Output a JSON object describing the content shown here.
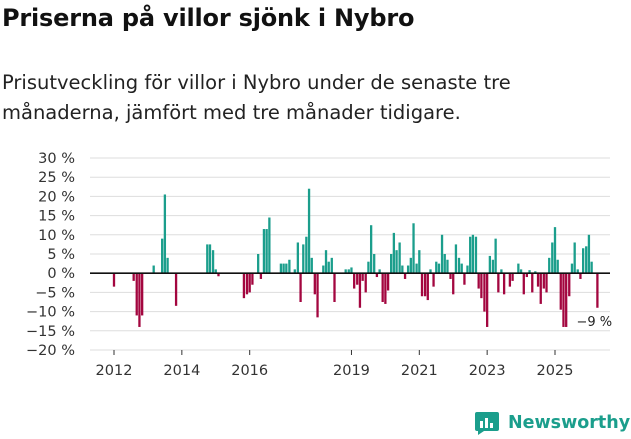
{
  "header": {
    "title": "Priserna på villor sjönk i Nybro",
    "subtitle": "Prisutveckling för villor i Nybro under de senaste tre månaderna, jämfört med tre månader tidigare."
  },
  "brand": {
    "name": "Newsworthy"
  },
  "chart_data": {
    "type": "bar",
    "title": "Priserna på villor sjönk i Nybro",
    "subtitle": "Prisutveckling för villor i Nybro under de senaste tre månaderna, jämfört med tre månader tidigare.",
    "xlabel": "",
    "ylabel": "",
    "ylim": [
      -20,
      30
    ],
    "y_ticks": [
      -20,
      -15,
      -10,
      -5,
      0,
      5,
      10,
      15,
      20,
      25,
      30
    ],
    "y_tick_labels": [
      "−20 %",
      "−15 %",
      "−10 %",
      "−5 %",
      "0 %",
      "5 %",
      "10 %",
      "15 %",
      "20 %",
      "25 %",
      "30 %"
    ],
    "x_ticks": [
      2012,
      2014,
      2016,
      2019,
      2021,
      2023,
      2025
    ],
    "x_tick_labels": [
      "2012",
      "2014",
      "2016",
      "2019",
      "2021",
      "2023",
      "2025"
    ],
    "grid": true,
    "colors": {
      "positive": "#1b9e8c",
      "negative": "#a3063f",
      "grid": "#dddddd",
      "zero_line": "#111111"
    },
    "annotation": {
      "text": "−9 %",
      "date": 2025.75,
      "value": -9
    },
    "points": [
      [
        2012.0,
        -3.5
      ],
      [
        2012.58,
        -2.0
      ],
      [
        2012.67,
        -11.0
      ],
      [
        2012.75,
        -14.0
      ],
      [
        2012.83,
        -11.0
      ],
      [
        2013.17,
        2.0
      ],
      [
        2013.42,
        9.0
      ],
      [
        2013.5,
        20.5
      ],
      [
        2013.58,
        4.0
      ],
      [
        2013.83,
        -8.5
      ],
      [
        2014.75,
        7.5
      ],
      [
        2014.83,
        7.5
      ],
      [
        2014.92,
        6.0
      ],
      [
        2015.0,
        1.0
      ],
      [
        2015.08,
        -0.8
      ],
      [
        2015.83,
        -6.5
      ],
      [
        2015.92,
        -5.5
      ],
      [
        2016.0,
        -5.0
      ],
      [
        2016.08,
        -3.0
      ],
      [
        2016.25,
        5.0
      ],
      [
        2016.33,
        -1.5
      ],
      [
        2016.42,
        11.5
      ],
      [
        2016.5,
        11.5
      ],
      [
        2016.58,
        14.5
      ],
      [
        2016.92,
        2.5
      ],
      [
        2017.0,
        2.5
      ],
      [
        2017.08,
        2.5
      ],
      [
        2017.17,
        3.5
      ],
      [
        2017.33,
        1.0
      ],
      [
        2017.42,
        8.0
      ],
      [
        2017.5,
        -7.5
      ],
      [
        2017.58,
        7.5
      ],
      [
        2017.67,
        9.5
      ],
      [
        2017.75,
        22.0
      ],
      [
        2017.83,
        4.0
      ],
      [
        2017.92,
        -5.5
      ],
      [
        2018.0,
        -11.5
      ],
      [
        2018.17,
        2.0
      ],
      [
        2018.25,
        6.0
      ],
      [
        2018.33,
        3.0
      ],
      [
        2018.42,
        4.0
      ],
      [
        2018.5,
        -7.5
      ],
      [
        2018.83,
        1.0
      ],
      [
        2018.92,
        1.0
      ],
      [
        2019.0,
        1.5
      ],
      [
        2019.08,
        -4.0
      ],
      [
        2019.17,
        -3.0
      ],
      [
        2019.25,
        -9.0
      ],
      [
        2019.33,
        -2.0
      ],
      [
        2019.42,
        -5.0
      ],
      [
        2019.5,
        3.0
      ],
      [
        2019.58,
        12.5
      ],
      [
        2019.67,
        5.0
      ],
      [
        2019.75,
        -1.0
      ],
      [
        2019.83,
        1.0
      ],
      [
        2019.92,
        -7.5
      ],
      [
        2020.0,
        -8.0
      ],
      [
        2020.08,
        -4.5
      ],
      [
        2020.17,
        5.0
      ],
      [
        2020.25,
        10.5
      ],
      [
        2020.33,
        6.0
      ],
      [
        2020.42,
        8.0
      ],
      [
        2020.5,
        2.0
      ],
      [
        2020.58,
        -1.5
      ],
      [
        2020.67,
        2.0
      ],
      [
        2020.75,
        4.0
      ],
      [
        2020.83,
        13.0
      ],
      [
        2020.92,
        2.5
      ],
      [
        2021.0,
        6.0
      ],
      [
        2021.08,
        -6.0
      ],
      [
        2021.17,
        -6.0
      ],
      [
        2021.25,
        -7.0
      ],
      [
        2021.33,
        1.0
      ],
      [
        2021.42,
        -3.5
      ],
      [
        2021.5,
        3.0
      ],
      [
        2021.58,
        2.5
      ],
      [
        2021.67,
        10.0
      ],
      [
        2021.75,
        5.0
      ],
      [
        2021.83,
        3.5
      ],
      [
        2021.92,
        -1.5
      ],
      [
        2022.0,
        -5.5
      ],
      [
        2022.08,
        7.5
      ],
      [
        2022.17,
        4.0
      ],
      [
        2022.25,
        2.5
      ],
      [
        2022.33,
        -3.0
      ],
      [
        2022.42,
        2.0
      ],
      [
        2022.5,
        9.5
      ],
      [
        2022.58,
        10.0
      ],
      [
        2022.67,
        9.5
      ],
      [
        2022.75,
        -4.0
      ],
      [
        2022.83,
        -6.5
      ],
      [
        2022.92,
        -10.0
      ],
      [
        2023.0,
        -14.0
      ],
      [
        2023.08,
        4.5
      ],
      [
        2023.17,
        3.5
      ],
      [
        2023.25,
        9.0
      ],
      [
        2023.33,
        -5.0
      ],
      [
        2023.42,
        1.0
      ],
      [
        2023.5,
        -5.5
      ],
      [
        2023.67,
        -3.5
      ],
      [
        2023.75,
        -2.0
      ],
      [
        2023.92,
        2.5
      ],
      [
        2024.0,
        1.0
      ],
      [
        2024.08,
        -5.5
      ],
      [
        2024.17,
        -1.0
      ],
      [
        2024.25,
        0.8
      ],
      [
        2024.33,
        -5.0
      ],
      [
        2024.42,
        0.5
      ],
      [
        2024.5,
        -3.5
      ],
      [
        2024.58,
        -8.0
      ],
      [
        2024.67,
        -4.0
      ],
      [
        2024.75,
        -5.0
      ],
      [
        2024.83,
        4.0
      ],
      [
        2024.92,
        8.0
      ],
      [
        2025.0,
        12.0
      ],
      [
        2025.08,
        3.5
      ],
      [
        2025.17,
        -9.5
      ],
      [
        2025.25,
        -14.0
      ],
      [
        2025.33,
        -14.0
      ],
      [
        2025.42,
        -6.0
      ],
      [
        2025.5,
        2.5
      ],
      [
        2025.58,
        8.0
      ],
      [
        2025.67,
        1.0
      ],
      [
        2025.75,
        -1.5
      ],
      [
        2025.83,
        6.5
      ],
      [
        2025.92,
        7.0
      ],
      [
        2026.0,
        10.0
      ],
      [
        2026.08,
        3.0
      ],
      [
        2026.25,
        -9.0
      ]
    ]
  }
}
